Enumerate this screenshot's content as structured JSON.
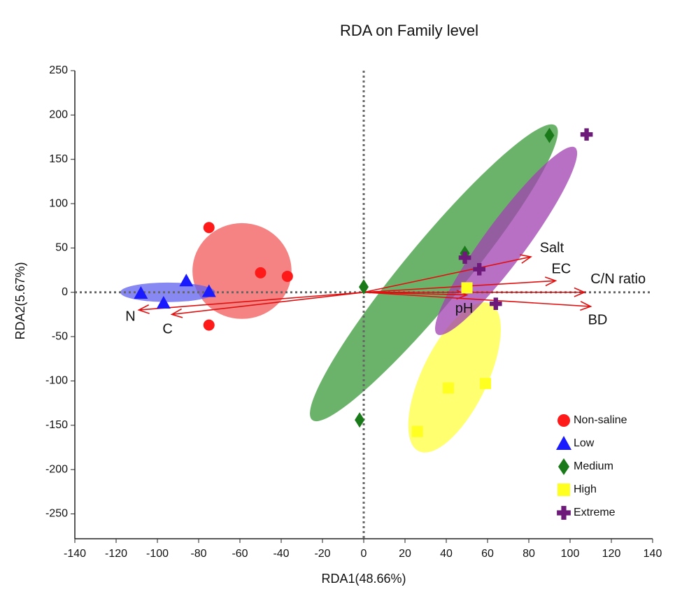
{
  "chart_data": {
    "type": "scatter",
    "title": "RDA on Family level",
    "x_label": "RDA1(48.66%)",
    "y_label": "RDA2(5.67%)",
    "xlim": [
      -140,
      140
    ],
    "xticks": [
      -140,
      -120,
      -100,
      -80,
      -60,
      -40,
      -20,
      0,
      20,
      40,
      60,
      80,
      100,
      120,
      140
    ],
    "ylim": [
      -278,
      250
    ],
    "yticks": [
      -250,
      -200,
      -150,
      -100,
      -50,
      0,
      50,
      100,
      150,
      200,
      250
    ],
    "legend": "lower right",
    "series": [
      {
        "name": "Non-saline",
        "color": "#ff1a1a",
        "marker": "circle",
        "x": [
          -75,
          -50,
          -37,
          -75
        ],
        "y": [
          73,
          22,
          18,
          -37
        ],
        "ellipse": {
          "color": "#f25a5a",
          "cx": -59,
          "cy": 24,
          "rx": 24,
          "ry": 54,
          "angle": 0
        }
      },
      {
        "name": "Low",
        "color": "#1a1aff",
        "marker": "triangle",
        "x": [
          -108,
          -86,
          -75,
          -97
        ],
        "y": [
          -1,
          13,
          1,
          -12
        ],
        "ellipse": {
          "color": "#6060ee",
          "cx": -95,
          "cy": 0,
          "rx": 23,
          "ry": 11,
          "angle": 0
        }
      },
      {
        "name": "Medium",
        "color": "#1a7a1a",
        "marker": "diamond",
        "x": [
          90,
          49,
          0,
          -2
        ],
        "y": [
          177,
          44,
          6,
          -144
        ],
        "ellipse": {
          "color": "#3a9a3a",
          "cx": 34,
          "cy": 22,
          "rx": 177,
          "ry": 18,
          "angle": 71
        }
      },
      {
        "name": "High",
        "color": "#ffff20",
        "marker": "square",
        "x": [
          50,
          41,
          59,
          26
        ],
        "y": [
          5,
          -108,
          -103,
          -157
        ],
        "ellipse": {
          "color": "#ffff40",
          "cx": 44,
          "cy": -96,
          "rx": 86,
          "ry": 17,
          "angle": 80
        }
      },
      {
        "name": "Extreme",
        "color": "#6e1a7a",
        "marker": "cross",
        "x": [
          108,
          49,
          56,
          64
        ],
        "y": [
          178,
          39,
          26,
          -13
        ],
        "ellipse": {
          "color": "#a040b0",
          "cx": 69,
          "cy": 58,
          "rx": 111,
          "ry": 12,
          "angle": 73
        }
      }
    ],
    "vectors": [
      {
        "label": "Salt",
        "x": 81,
        "y": 40
      },
      {
        "label": "EC",
        "x": 93,
        "y": 13
      },
      {
        "label": "C/N ratio",
        "x": 107,
        "y": 0
      },
      {
        "label": "BD",
        "x": 110,
        "y": -16
      },
      {
        "label": "pH",
        "x": 50,
        "y": -3
      },
      {
        "label": "N",
        "x": -109,
        "y": -20
      },
      {
        "label": "C",
        "x": -93,
        "y": -25
      }
    ]
  }
}
